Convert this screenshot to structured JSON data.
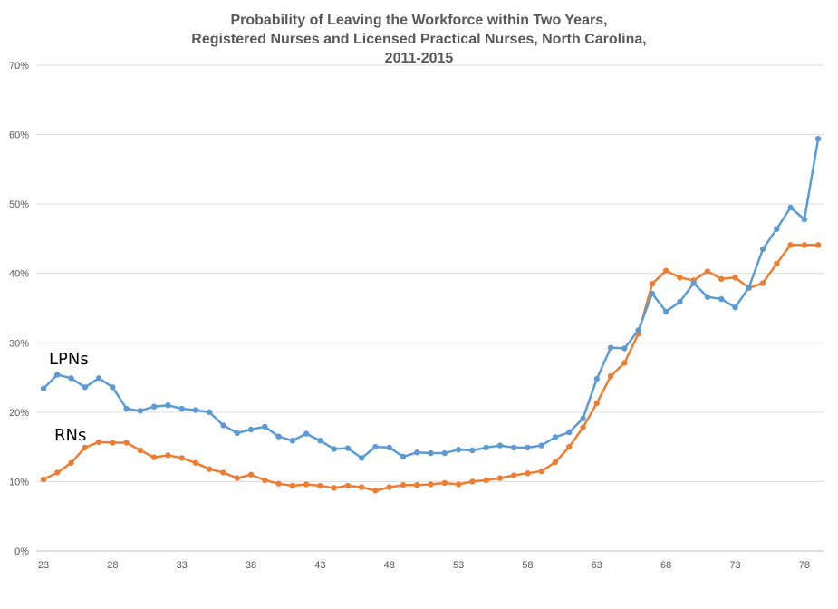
{
  "chart_data": {
    "type": "line",
    "title_lines": [
      "Probability of Leaving the Workforce within Two Years,",
      "Registered Nurses and Licensed Practical Nurses, North Carolina,",
      "2011-2015"
    ],
    "xlabel": "",
    "ylabel": "",
    "x_tick_labels": [
      "23",
      "28",
      "33",
      "38",
      "43",
      "48",
      "53",
      "58",
      "63",
      "68",
      "73",
      "78"
    ],
    "y_tick_labels": [
      "0%",
      "10%",
      "20%",
      "30%",
      "40%",
      "50%",
      "60%",
      "70%"
    ],
    "ylim": [
      0,
      70
    ],
    "xlim": [
      23,
      79
    ],
    "grid": "horizontal",
    "legend": "none",
    "annotations": [
      {
        "text": "LPNs",
        "series": "LPNs"
      },
      {
        "text": "RNs",
        "series": "RNs"
      }
    ],
    "x": [
      23,
      24,
      25,
      26,
      27,
      28,
      29,
      30,
      31,
      32,
      33,
      34,
      35,
      36,
      37,
      38,
      39,
      40,
      41,
      42,
      43,
      44,
      45,
      46,
      47,
      48,
      49,
      50,
      51,
      52,
      53,
      54,
      55,
      56,
      57,
      58,
      59,
      60,
      61,
      62,
      63,
      64,
      65,
      66,
      67,
      68,
      69,
      70,
      71,
      72,
      73,
      74,
      75,
      76,
      77,
      78,
      79
    ],
    "series": [
      {
        "name": "LPNs",
        "color": "#5B9BD5",
        "values": [
          23.4,
          25.4,
          24.9,
          23.6,
          24.9,
          23.6,
          20.5,
          20.2,
          20.8,
          21.0,
          20.5,
          20.3,
          20.0,
          18.1,
          17.0,
          17.5,
          17.9,
          16.5,
          15.9,
          16.9,
          15.9,
          14.7,
          14.8,
          13.4,
          15.0,
          14.9,
          13.6,
          14.2,
          14.1,
          14.1,
          14.6,
          14.5,
          14.9,
          15.2,
          14.9,
          14.9,
          15.2,
          16.4,
          17.1,
          19.1,
          24.8,
          29.3,
          29.2,
          31.8,
          37.1,
          34.5,
          35.9,
          38.6,
          36.6,
          36.3,
          35.1,
          38.0,
          43.5,
          46.4,
          49.5,
          47.8,
          59.4
        ]
      },
      {
        "name": "RNs",
        "color": "#ED7D31",
        "values": [
          10.3,
          11.3,
          12.7,
          14.9,
          15.7,
          15.6,
          15.6,
          14.5,
          13.5,
          13.8,
          13.4,
          12.7,
          11.8,
          11.3,
          10.5,
          11.0,
          10.2,
          9.7,
          9.4,
          9.6,
          9.4,
          9.1,
          9.4,
          9.2,
          8.7,
          9.2,
          9.5,
          9.5,
          9.6,
          9.8,
          9.6,
          10.0,
          10.2,
          10.5,
          10.9,
          11.2,
          11.5,
          12.8,
          15.0,
          17.8,
          21.3,
          25.2,
          27.1,
          31.3,
          38.5,
          40.4,
          39.4,
          39.0,
          40.3,
          39.2,
          39.4,
          37.9,
          38.6,
          41.4,
          44.1,
          44.1,
          44.1
        ]
      }
    ]
  }
}
